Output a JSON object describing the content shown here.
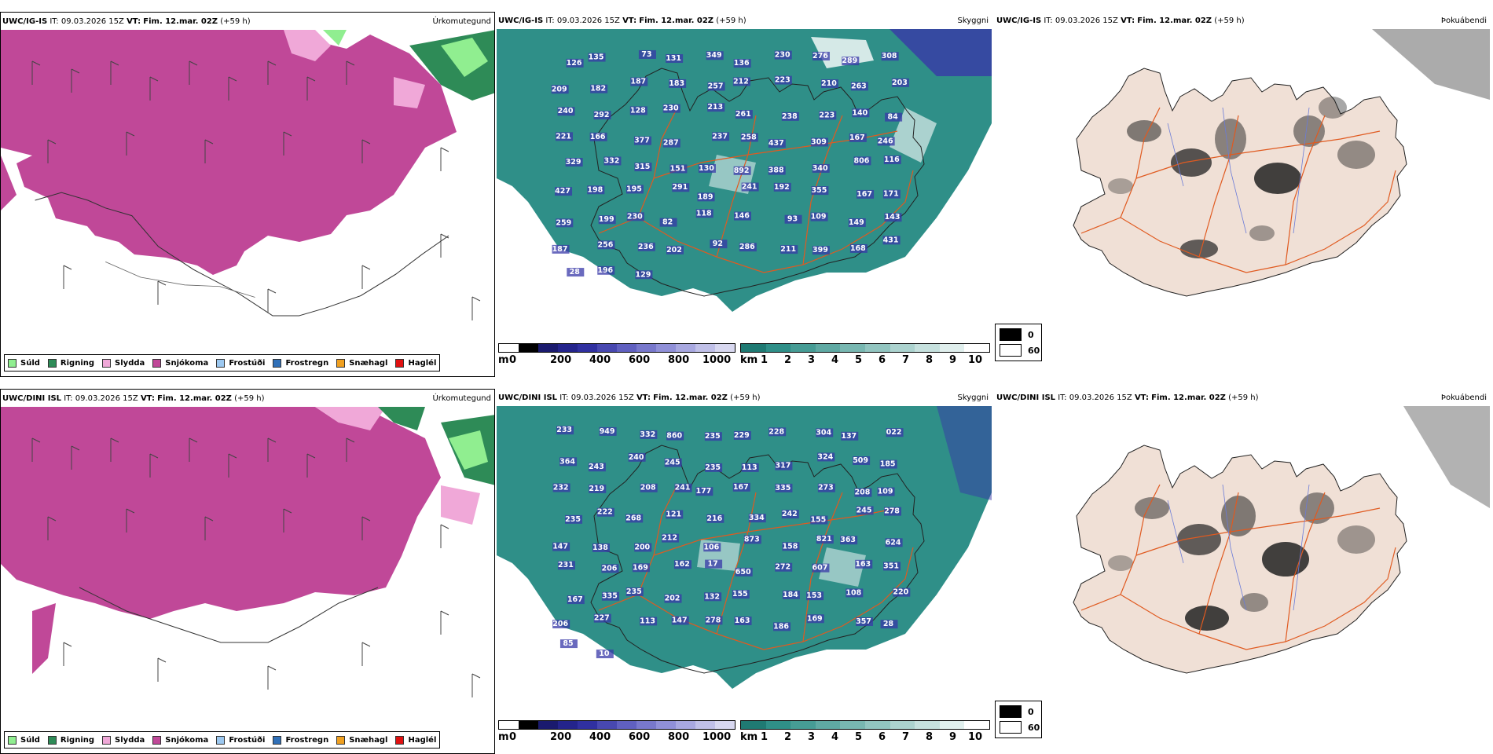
{
  "rows": [
    {
      "precip": {
        "model": "UWC/IG-IS",
        "it_label": "IT:",
        "it": "09.03.2026 15Z",
        "vt_label": "VT:",
        "vt": "Fim. 12.mar. 02Z",
        "lead": "(+59 h)",
        "title": "Úrkomutegund"
      },
      "vis": {
        "model": "UWC/IG-IS",
        "it_label": "IT:",
        "it": "09.03.2026 15Z",
        "vt_label": "VT:",
        "vt": "Fim. 12.mar. 02Z",
        "lead": "(+59 h)",
        "title": "Skyggni"
      },
      "cloud": {
        "model": "UWC/IG-IS",
        "it_label": "IT:",
        "it": "09.03.2026 15Z",
        "vt_label": "VT:",
        "vt": "Fim. 12.mar. 02Z",
        "lead": "(+59 h)",
        "title": "Þokuábendi"
      },
      "labels": [
        "126",
        "135",
        "73",
        "131",
        "349",
        "136",
        "230",
        "276",
        "289",
        "308",
        "209",
        "182",
        "187",
        "183",
        "257",
        "212",
        "223",
        "210",
        "263",
        "203",
        "240",
        "292",
        "128",
        "230",
        "213",
        "261",
        "238",
        "223",
        "140",
        "84",
        "221",
        "166",
        "377",
        "287",
        "237",
        "258",
        "437",
        "309",
        "167",
        "246",
        "329",
        "332",
        "315",
        "151",
        "130",
        "892",
        "388",
        "340",
        "806",
        "116",
        "427",
        "198",
        "195",
        "291",
        "189",
        "241",
        "192",
        "355",
        "167",
        "171",
        "259",
        "199",
        "230",
        "82",
        "118",
        "146",
        "93",
        "109",
        "149",
        "143",
        "187",
        "256",
        "236",
        "202",
        "92",
        "286",
        "211",
        "399",
        "168",
        "431",
        "28",
        "196",
        "129"
      ]
    },
    {
      "precip": {
        "model": "UWC/DINI ISL",
        "it_label": "IT:",
        "it": "09.03.2026 15Z",
        "vt_label": "VT:",
        "vt": "Fim. 12.mar. 02Z",
        "lead": "(+59 h)",
        "title": "Úrkomutegund"
      },
      "vis": {
        "model": "UWC/DINI ISL",
        "it_label": "IT:",
        "it": "09.03.2026 15Z",
        "vt_label": "VT:",
        "vt": "Fim. 12.mar. 02Z",
        "lead": "(+59 h)",
        "title": "Skyggni"
      },
      "cloud": {
        "model": "UWC/DINI ISL",
        "it_label": "IT:",
        "it": "09.03.2026 15Z",
        "vt_label": "VT:",
        "vt": "Fim. 12.mar. 02Z",
        "lead": "(+59 h)",
        "title": "Þokuábendi"
      },
      "labels": [
        "233",
        "949",
        "332",
        "860",
        "235",
        "229",
        "228",
        "304",
        "137",
        "022",
        "364",
        "243",
        "240",
        "245",
        "235",
        "113",
        "317",
        "324",
        "509",
        "185",
        "232",
        "219",
        "208",
        "241",
        "177",
        "167",
        "335",
        "273",
        "208",
        "109",
        "235",
        "222",
        "268",
        "121",
        "216",
        "334",
        "242",
        "155",
        "245",
        "278",
        "147",
        "138",
        "200",
        "212",
        "106",
        "873",
        "158",
        "821",
        "363",
        "624",
        "231",
        "206",
        "169",
        "162",
        "17",
        "650",
        "272",
        "607",
        "163",
        "351",
        "167",
        "335",
        "235",
        "202",
        "132",
        "155",
        "184",
        "153",
        "108",
        "220",
        "206",
        "227",
        "113",
        "147",
        "278",
        "163",
        "186",
        "169",
        "357",
        "28",
        "85",
        "10"
      ]
    }
  ],
  "precip_legend": [
    {
      "label": "Súld",
      "color": "#90ee90"
    },
    {
      "label": "Rigning",
      "color": "#2e8b57"
    },
    {
      "label": "Slydda",
      "color": "#f0a8d8"
    },
    {
      "label": "Snjókoma",
      "color": "#c04898"
    },
    {
      "label": "Frostúði",
      "color": "#9cc8f0"
    },
    {
      "label": "Frostregn",
      "color": "#3070b8"
    },
    {
      "label": "Snæhagl",
      "color": "#f0a020"
    },
    {
      "label": "Haglél",
      "color": "#e01010"
    }
  ],
  "cloudbase_bar": {
    "unit": "m",
    "ticks": [
      "0",
      "200",
      "400",
      "600",
      "800",
      "1000"
    ]
  },
  "vis_bar": {
    "unit": "km",
    "ticks": [
      "1",
      "2",
      "3",
      "4",
      "5",
      "6",
      "7",
      "8",
      "9",
      "10"
    ]
  },
  "fog_legend": {
    "dark": "0",
    "light": "60"
  },
  "colors": {
    "snow": "#c04898",
    "sleet": "#f0a8d8",
    "rain": "#2e8b57",
    "drizzle": "#90ee90",
    "teal": "#2f8f88",
    "purple": "#3838a8",
    "road": "#e05a20",
    "land": "#f0e0d6"
  }
}
